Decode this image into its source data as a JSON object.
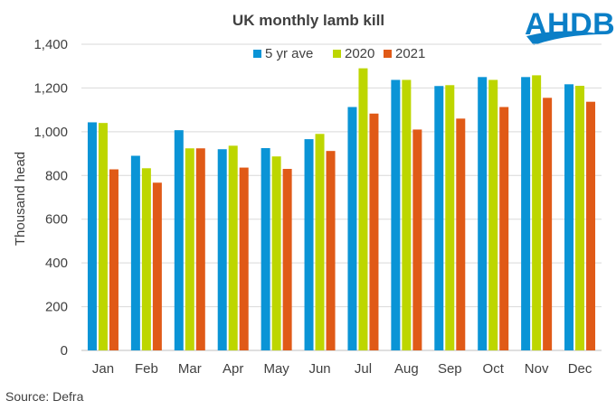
{
  "chart_data": {
    "type": "bar",
    "title": "UK monthly lamb kill",
    "ylabel": "Thousand head",
    "xlabel": "",
    "ylim": [
      0,
      1400
    ],
    "yticks": [
      0,
      200,
      400,
      600,
      800,
      1000,
      1200,
      1400
    ],
    "ytick_labels": [
      "0",
      "200",
      "400",
      "600",
      "800",
      "1,000",
      "1,200",
      "1,400"
    ],
    "categories": [
      "Jan",
      "Feb",
      "Mar",
      "Apr",
      "May",
      "Jun",
      "Jul",
      "Aug",
      "Sep",
      "Oct",
      "Nov",
      "Dec"
    ],
    "series": [
      {
        "name": "5 yr ave",
        "color": "#0a94d6",
        "values": [
          1043,
          890,
          1007,
          920,
          925,
          966,
          1113,
          1237,
          1209,
          1250,
          1250,
          1217
        ]
      },
      {
        "name": "2020",
        "color": "#bdd600",
        "values": [
          1040,
          833,
          924,
          936,
          887,
          990,
          1290,
          1237,
          1213,
          1237,
          1258,
          1210
        ]
      },
      {
        "name": "2021",
        "color": "#e05a17",
        "values": [
          828,
          767,
          924,
          836,
          830,
          912,
          1083,
          1010,
          1060,
          1113,
          1155,
          1137
        ]
      }
    ],
    "legend_position": "top-center",
    "grid": true
  },
  "source_text": "Source: Defra",
  "logo": {
    "text": "AHDB",
    "color": "#0b7fc7"
  }
}
